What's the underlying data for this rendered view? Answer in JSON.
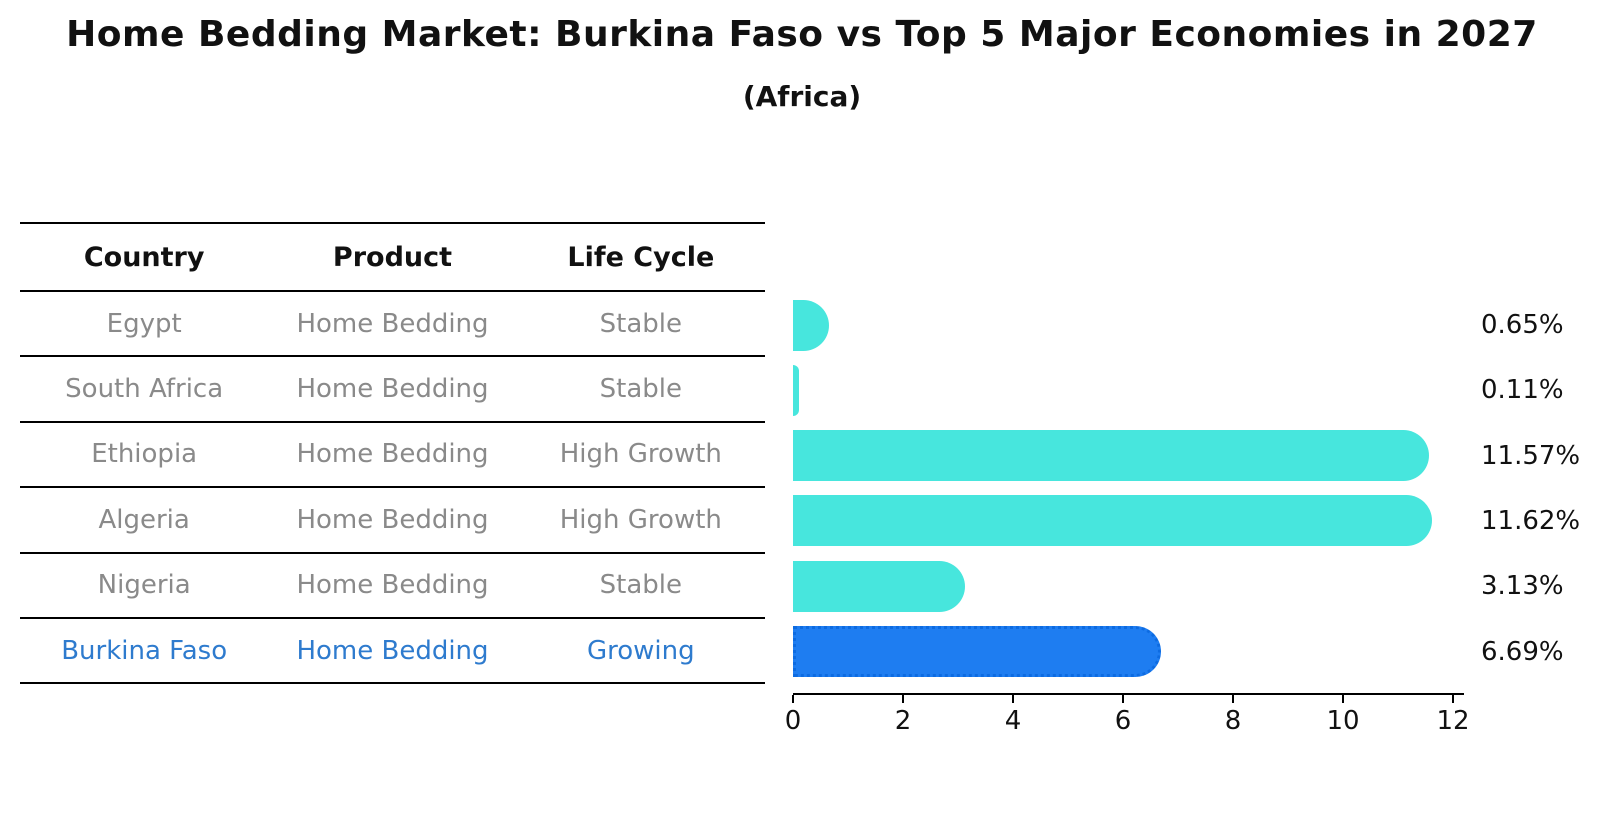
{
  "title": "Home Bedding Market: Burkina Faso vs Top 5 Major Economies in 2027",
  "subtitle": "(Africa)",
  "table": {
    "headers": [
      "Country",
      "Product",
      "Life Cycle"
    ],
    "rows": [
      {
        "country": "Egypt",
        "product": "Home Bedding",
        "life_cycle": "Stable",
        "highlight": false
      },
      {
        "country": "South Africa",
        "product": "Home Bedding",
        "life_cycle": "Stable",
        "highlight": false
      },
      {
        "country": "Ethiopia",
        "product": "Home Bedding",
        "life_cycle": "High Growth",
        "highlight": false
      },
      {
        "country": "Algeria",
        "product": "Home Bedding",
        "life_cycle": "High Growth",
        "highlight": false
      },
      {
        "country": "Nigeria",
        "product": "Home Bedding",
        "life_cycle": "Stable",
        "highlight": false
      },
      {
        "country": "Burkina Faso",
        "product": "Home Bedding",
        "life_cycle": "Growing",
        "highlight": true
      }
    ]
  },
  "chart_data": {
    "type": "bar",
    "orientation": "horizontal",
    "categories": [
      "Egypt",
      "South Africa",
      "Ethiopia",
      "Algeria",
      "Nigeria",
      "Burkina Faso"
    ],
    "values": [
      0.65,
      0.11,
      11.57,
      11.62,
      3.13,
      6.69
    ],
    "value_labels": [
      "0.65%",
      "0.11%",
      "11.57%",
      "11.62%",
      "3.13%",
      "6.69%"
    ],
    "title": "Home Bedding Market: Burkina Faso vs Top 5 Major Economies in 2027",
    "subtitle": "(Africa)",
    "xlabel": "",
    "ylabel": "",
    "xlim": [
      0,
      12.2
    ],
    "x_ticks": [
      0,
      2,
      4,
      6,
      8,
      10,
      12
    ],
    "grid": false,
    "legend": false,
    "highlight_index": 5,
    "bar_color_default": "#47e6dd",
    "bar_color_highlight": "#1e7df1"
  },
  "colors": {
    "bar_default": "#47e6dd",
    "bar_highlight": "#1e7df1",
    "bar_highlight_edge": "#0d6be1",
    "highlight_text": "#2e7bce",
    "row_text": "#8a8a8a",
    "heading_text": "#111111",
    "axis": "#000000"
  }
}
